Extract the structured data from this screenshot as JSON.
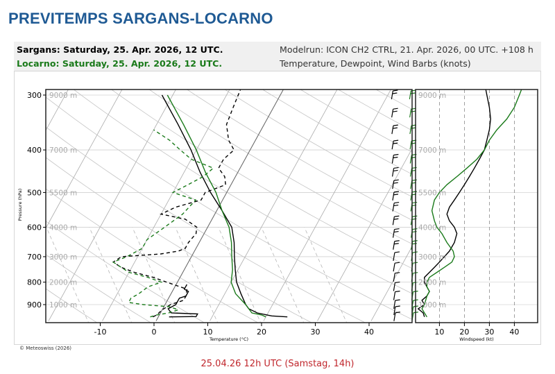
{
  "app_title": "PREVITEMPS SARGANS-LOCARNO",
  "header": {
    "line1_left": "Sargans: Saturday, 25. Apr. 2026, 12 UTC.",
    "line2_left": "Locarno: Saturday, 25. Apr. 2026, 12 UTC.",
    "line1_right": "Modelrun: ICON CH2 CTRL, 21. Apr. 2026, 00 UTC. +108 h",
    "line2_right": "Temperature, Dewpoint, Wind Barbs (knots)"
  },
  "colors": {
    "title": "#1f5a94",
    "sargans": "#000000",
    "locarno": "#1a7a1a",
    "caption": "#c0262c"
  },
  "copyright": "© Meteoswiss (2026)",
  "caption": "25.04.26 12h UTC (Samstag, 14h)",
  "chart_data": [
    {
      "type": "line",
      "title": "",
      "xlabel": "Temperature (°C)",
      "ylabel": "Pressure (hPa)",
      "xlim": [
        -20,
        48
      ],
      "ylim": [
        970,
        290
      ],
      "x_ticks": [
        "-10",
        "0",
        "10",
        "20",
        "30",
        "40"
      ],
      "y_ticks": [
        "300",
        "400",
        "500",
        "600",
        "700",
        "800",
        "900"
      ],
      "altitude_labels": [
        "9000 m",
        "7000 m",
        "5500 m",
        "4000 m",
        "3000 m",
        "2000 m",
        "1000 m"
      ],
      "series": [
        {
          "name": "Sargans",
          "values": [
            [
              960,
              2
            ],
            [
              958,
              7
            ],
            [
              945,
              7
            ],
            [
              940,
              2
            ],
            [
              920,
              1
            ],
            [
              900,
              2
            ],
            [
              870,
              2
            ],
            [
              860,
              3
            ],
            [
              840,
              3
            ],
            [
              830,
              2
            ],
            [
              820,
              2
            ],
            [
              810,
              2
            ]
          ]
        },
        {
          "name": "Sargans",
          "values": [
            [
              960,
              24
            ],
            [
              955,
              21
            ],
            [
              950,
              20
            ],
            [
              940,
              18
            ],
            [
              920,
              16
            ],
            [
              900,
              15
            ],
            [
              850,
              13
            ],
            [
              800,
              11
            ],
            [
              750,
              9.5
            ],
            [
              700,
              8
            ],
            [
              650,
              6.5
            ],
            [
              600,
              4.5
            ],
            [
              550,
              1
            ],
            [
              500,
              -3
            ],
            [
              450,
              -7
            ],
            [
              400,
              -11
            ],
            [
              350,
              -16
            ],
            [
              300,
              -22
            ]
          ]
        },
        {
          "name": "Sargans",
          "values": [
            [
              960,
              -1
            ],
            [
              950,
              -0.5
            ],
            [
              925,
              0
            ],
            [
              900,
              1
            ],
            [
              880,
              3
            ],
            [
              860,
              3
            ],
            [
              830,
              2.5
            ],
            [
              800,
              -2
            ],
            [
              780,
              -5
            ],
            [
              760,
              -9
            ],
            [
              740,
              -12
            ],
            [
              720,
              -14
            ],
            [
              700,
              -13
            ],
            [
              690,
              -6
            ],
            [
              680,
              -3
            ],
            [
              670,
              -2
            ],
            [
              650,
              -2
            ],
            [
              620,
              -1.5
            ],
            [
              600,
              -2
            ],
            [
              575,
              -5
            ],
            [
              560,
              -10
            ],
            [
              540,
              -8
            ],
            [
              520,
              -4
            ],
            [
              500,
              -4
            ],
            [
              480,
              -1
            ],
            [
              460,
              -2
            ],
            [
              440,
              -4
            ],
            [
              420,
              -4
            ],
            [
              400,
              -3
            ],
            [
              380,
              -5
            ],
            [
              350,
              -7
            ],
            [
              320,
              -7.5
            ],
            [
              290,
              -8
            ]
          ]
        },
        {
          "name": "Locarno",
          "values": [
            [
              960,
              20
            ],
            [
              950,
              19
            ],
            [
              940,
              17
            ],
            [
              920,
              16
            ],
            [
              900,
              15
            ],
            [
              850,
              12
            ],
            [
              800,
              10
            ],
            [
              750,
              9
            ],
            [
              700,
              7.5
            ],
            [
              650,
              6
            ],
            [
              600,
              4
            ],
            [
              550,
              1
            ],
            [
              500,
              -2
            ],
            [
              450,
              -6
            ],
            [
              400,
              -10
            ],
            [
              350,
              -15
            ],
            [
              300,
              -21
            ]
          ]
        },
        {
          "name": "Locarno",
          "values": [
            [
              960,
              -1.5
            ],
            [
              950,
              -0.5
            ],
            [
              940,
              1.5
            ],
            [
              925,
              3
            ],
            [
              910,
              1
            ],
            [
              900,
              -4
            ],
            [
              890,
              -7
            ],
            [
              870,
              -7
            ],
            [
              850,
              -6
            ],
            [
              820,
              -5
            ],
            [
              800,
              -3
            ],
            [
              780,
              -6
            ],
            [
              760,
              -10
            ],
            [
              740,
              -12
            ],
            [
              720,
              -14
            ],
            [
              700,
              -12
            ],
            [
              670,
              -10
            ],
            [
              640,
              -10
            ],
            [
              600,
              -8
            ],
            [
              560,
              -6
            ],
            [
              520,
              -5
            ],
            [
              500,
              -10
            ],
            [
              480,
              -8
            ],
            [
              460,
              -6
            ],
            [
              440,
              -5
            ],
            [
              420,
              -10
            ],
            [
              400,
              -13
            ],
            [
              380,
              -16
            ],
            [
              360,
              -20
            ]
          ]
        }
      ],
      "wind_barbs": [
        {
          "name": "Sargans",
          "levels": [
            300,
            330,
            360,
            390,
            420,
            450,
            480,
            510,
            540,
            580,
            620,
            660,
            700,
            740,
            780,
            820,
            860,
            900,
            930,
            960
          ]
        },
        {
          "name": "Locarno",
          "levels": [
            300,
            330,
            360,
            390,
            420,
            450,
            480,
            510,
            540,
            580,
            620,
            660,
            700,
            740,
            780,
            820,
            860,
            900,
            930,
            960
          ]
        }
      ]
    },
    {
      "type": "line",
      "title": "",
      "xlabel": "Windspeed (kt)",
      "xlim": [
        0,
        50
      ],
      "ylim": [
        970,
        290
      ],
      "x_ticks": [
        "10",
        "20",
        "30",
        "40"
      ],
      "altitude_labels": [
        "9000 m",
        "7000 m",
        "5500 m",
        "4000 m",
        "3000 m",
        "2000 m",
        "1000 m"
      ],
      "series": [
        {
          "name": "Sargans",
          "values": [
            [
              960,
              4
            ],
            [
              940,
              3.5
            ],
            [
              920,
              1.5
            ],
            [
              900,
              4
            ],
            [
              880,
              3
            ],
            [
              860,
              5
            ],
            [
              840,
              6
            ],
            [
              820,
              5
            ],
            [
              800,
              4
            ],
            [
              780,
              4
            ],
            [
              760,
              6
            ],
            [
              740,
              8
            ],
            [
              720,
              10
            ],
            [
              700,
              12
            ],
            [
              680,
              14
            ],
            [
              650,
              16
            ],
            [
              620,
              17
            ],
            [
              600,
              16
            ],
            [
              580,
              14
            ],
            [
              560,
              13
            ],
            [
              540,
              14
            ],
            [
              520,
              16
            ],
            [
              500,
              18
            ],
            [
              480,
              20
            ],
            [
              460,
              22
            ],
            [
              440,
              24
            ],
            [
              420,
              26
            ],
            [
              400,
              28
            ],
            [
              380,
              29
            ],
            [
              360,
              30
            ],
            [
              340,
              30.5
            ],
            [
              320,
              30
            ],
            [
              300,
              29
            ],
            [
              290,
              28.5
            ]
          ]
        },
        {
          "name": "Locarno",
          "values": [
            [
              960,
              5
            ],
            [
              940,
              4
            ],
            [
              920,
              3
            ],
            [
              900,
              4
            ],
            [
              880,
              4.5
            ],
            [
              860,
              5
            ],
            [
              840,
              6
            ],
            [
              820,
              5
            ],
            [
              800,
              5
            ],
            [
              780,
              6
            ],
            [
              760,
              9
            ],
            [
              740,
              12
            ],
            [
              720,
              15
            ],
            [
              700,
              16
            ],
            [
              680,
              15.5
            ],
            [
              650,
              13
            ],
            [
              620,
              11
            ],
            [
              600,
              9
            ],
            [
              580,
              8
            ],
            [
              550,
              7
            ],
            [
              520,
              8
            ],
            [
              500,
              10
            ],
            [
              480,
              13
            ],
            [
              460,
              17
            ],
            [
              440,
              21
            ],
            [
              420,
              25
            ],
            [
              400,
              28
            ],
            [
              380,
              30
            ],
            [
              360,
              33
            ],
            [
              340,
              37
            ],
            [
              320,
              40
            ],
            [
              300,
              42
            ],
            [
              290,
              43
            ]
          ]
        }
      ]
    }
  ]
}
